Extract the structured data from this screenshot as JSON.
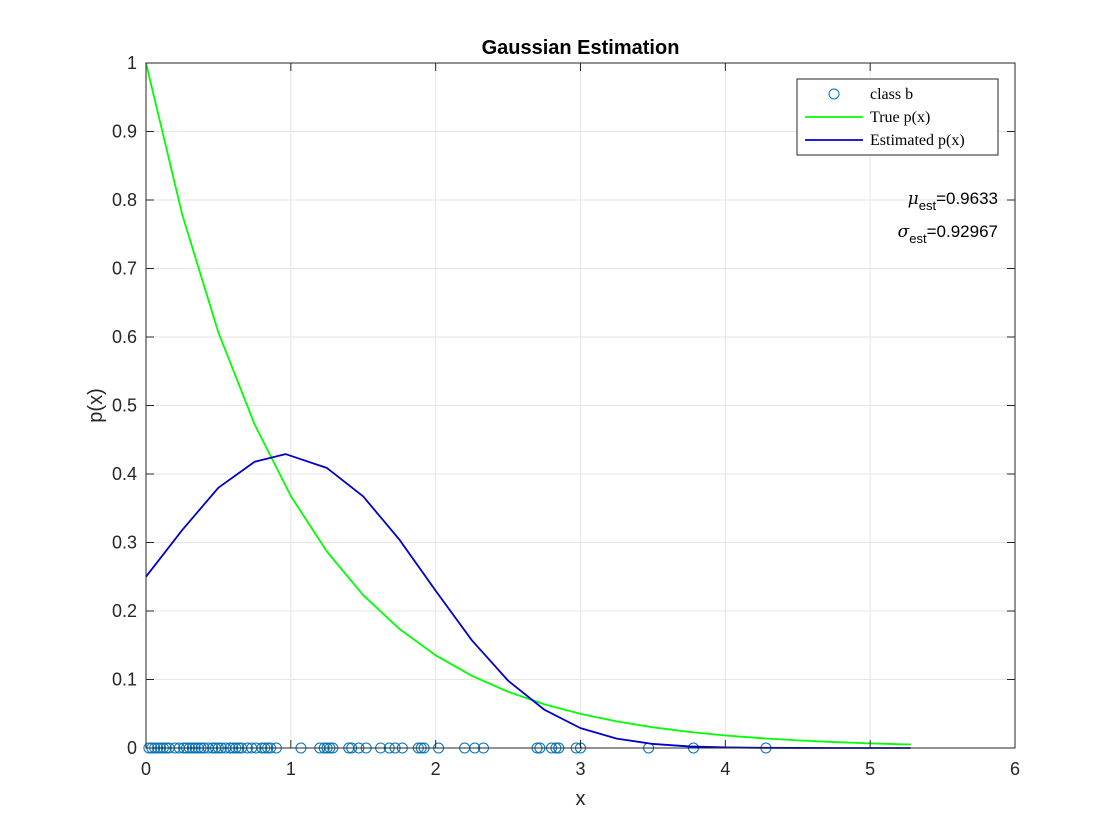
{
  "chart_data": {
    "type": "line",
    "title": "Gaussian Estimation",
    "xlabel": "x",
    "ylabel": "p(x)",
    "xlim": [
      0,
      6
    ],
    "ylim": [
      0,
      1
    ],
    "xticks": [
      0,
      1,
      2,
      3,
      4,
      5,
      6
    ],
    "yticks": [
      0,
      0.1,
      0.2,
      0.3,
      0.4,
      0.5,
      0.6,
      0.7,
      0.8,
      0.9,
      1
    ],
    "xtick_labels": [
      "0",
      "1",
      "2",
      "3",
      "4",
      "5",
      "6"
    ],
    "ytick_labels": [
      "0",
      "0.1",
      "0.2",
      "0.3",
      "0.4",
      "0.5",
      "0.6",
      "0.7",
      "0.8",
      "0.9",
      "1"
    ],
    "grid": true,
    "legend_position": "top-right",
    "series": [
      {
        "name": "class b",
        "kind": "scatter",
        "marker": "circle-open",
        "color": "#0072bd",
        "x": [
          0.02,
          0.04,
          0.06,
          0.08,
          0.1,
          0.12,
          0.14,
          0.16,
          0.2,
          0.23,
          0.26,
          0.28,
          0.3,
          0.32,
          0.34,
          0.36,
          0.38,
          0.4,
          0.43,
          0.46,
          0.48,
          0.5,
          0.52,
          0.55,
          0.58,
          0.6,
          0.62,
          0.64,
          0.66,
          0.7,
          0.73,
          0.76,
          0.8,
          0.82,
          0.84,
          0.86,
          0.9,
          1.07,
          1.2,
          1.23,
          1.25,
          1.27,
          1.29,
          1.4,
          1.42,
          1.47,
          1.52,
          1.62,
          1.68,
          1.72,
          1.77,
          1.88,
          1.9,
          1.92,
          2.02,
          2.2,
          2.27,
          2.33,
          2.7,
          2.72,
          2.8,
          2.83,
          2.85,
          2.97,
          3.0,
          3.47,
          3.78,
          4.28
        ],
        "y": [
          0,
          0,
          0,
          0,
          0,
          0,
          0,
          0,
          0,
          0,
          0,
          0,
          0,
          0,
          0,
          0,
          0,
          0,
          0,
          0,
          0,
          0,
          0,
          0,
          0,
          0,
          0,
          0,
          0,
          0,
          0,
          0,
          0,
          0,
          0,
          0,
          0,
          0,
          0,
          0,
          0,
          0,
          0,
          0,
          0,
          0,
          0,
          0,
          0,
          0,
          0,
          0,
          0,
          0,
          0,
          0,
          0,
          0,
          0,
          0,
          0,
          0,
          0,
          0,
          0,
          0,
          0,
          0
        ]
      },
      {
        "name": "True p(x)",
        "kind": "line",
        "color": "#00ff00",
        "x": [
          0,
          0.25,
          0.5,
          0.75,
          1.0,
          1.25,
          1.5,
          1.75,
          2.0,
          2.25,
          2.5,
          2.75,
          3.0,
          3.25,
          3.5,
          3.75,
          4.0,
          4.25,
          4.5,
          4.75,
          5.0,
          5.28
        ],
        "y": [
          1.0,
          0.7788,
          0.6065,
          0.4724,
          0.3679,
          0.2865,
          0.2231,
          0.1738,
          0.1353,
          0.1054,
          0.0821,
          0.0639,
          0.0498,
          0.0388,
          0.0302,
          0.0235,
          0.0183,
          0.0143,
          0.0111,
          0.0087,
          0.0067,
          0.0051
        ]
      },
      {
        "name": "Estimated p(x)",
        "kind": "line",
        "color": "#0000cc",
        "x": [
          0,
          0.25,
          0.5,
          0.75,
          0.9633,
          1.25,
          1.5,
          1.75,
          2.0,
          2.25,
          2.5,
          2.75,
          3.0,
          3.25,
          3.5,
          3.75,
          4.0,
          4.25,
          4.5,
          4.75,
          5.0,
          5.28
        ],
        "y": [
          0.2501,
          0.3182,
          0.38,
          0.4179,
          0.4291,
          0.4087,
          0.3672,
          0.3041,
          0.2295,
          0.1572,
          0.0983,
          0.056,
          0.029,
          0.0137,
          0.0059,
          0.0023,
          0.0008,
          0.0003,
          0.0001,
          0.0,
          0.0,
          0.0
        ]
      }
    ],
    "annotations": [
      {
        "symbol": "μ",
        "subscript": "est",
        "value": "=0.9633"
      },
      {
        "symbol": "σ",
        "subscript": "est",
        "value": "=0.92967"
      }
    ]
  }
}
